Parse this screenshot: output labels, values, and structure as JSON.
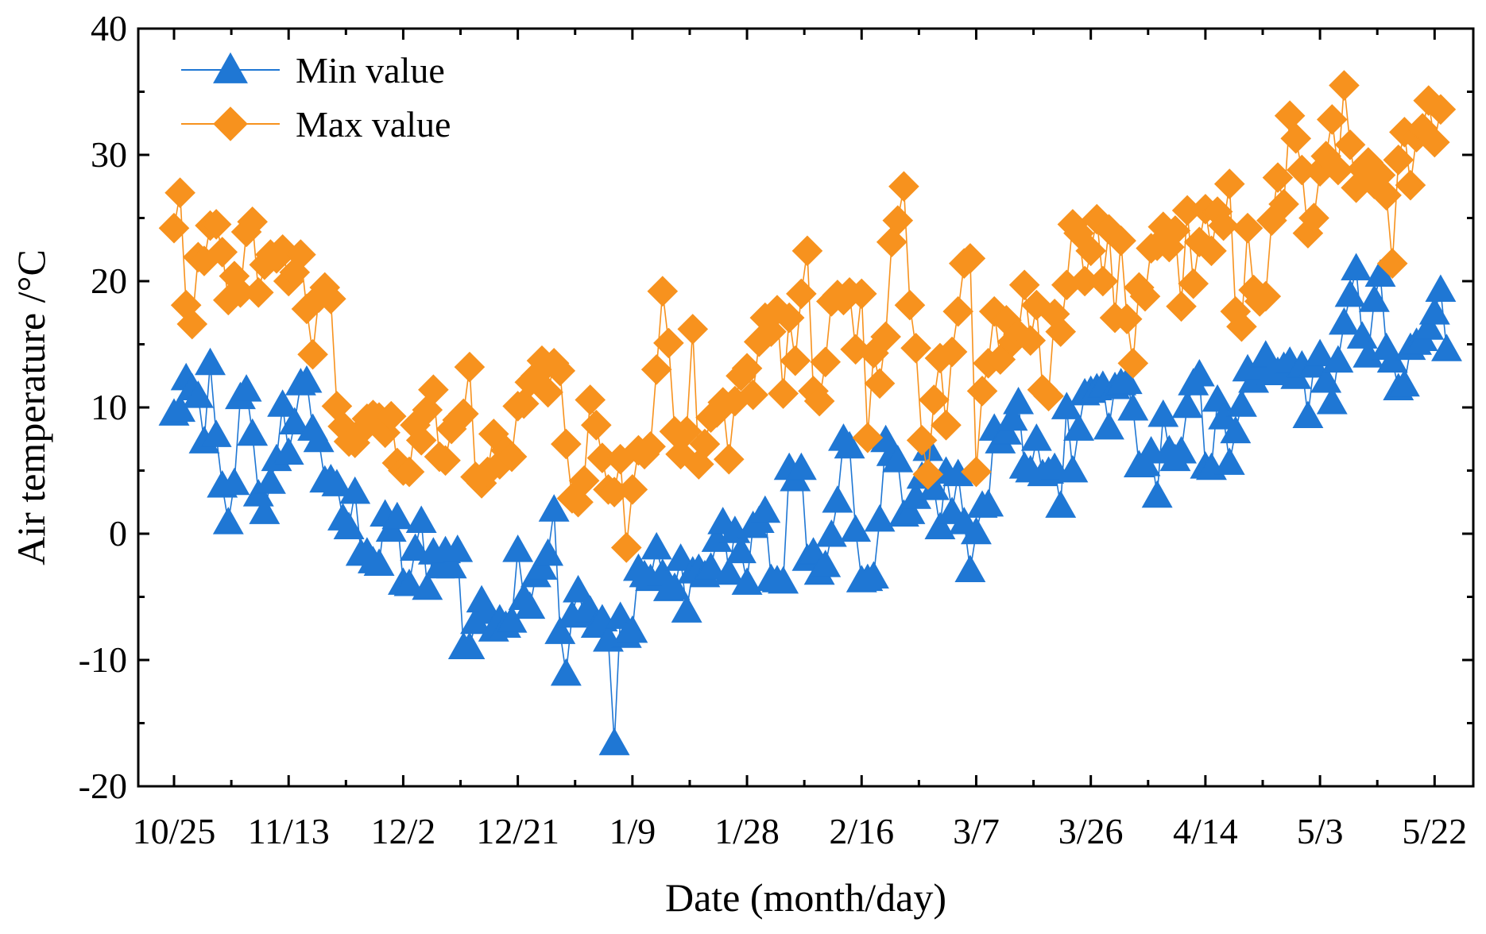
{
  "chart_data": {
    "type": "line",
    "xlabel": "Date (month/day)",
    "ylabel": "Air temperature /°C",
    "ylim": [
      -20,
      40
    ],
    "yticks": [
      -20,
      -10,
      0,
      10,
      20,
      30,
      40
    ],
    "xlim": [
      0,
      217
    ],
    "x_ticks": [
      {
        "pos": 0,
        "label": "10/25"
      },
      {
        "pos": 19,
        "label": "11/13"
      },
      {
        "pos": 38,
        "label": "12/2"
      },
      {
        "pos": 57,
        "label": "12/21"
      },
      {
        "pos": 76,
        "label": "1/9"
      },
      {
        "pos": 95,
        "label": "1/28"
      },
      {
        "pos": 114,
        "label": "2/16"
      },
      {
        "pos": 133,
        "label": "3/7"
      },
      {
        "pos": 152,
        "label": "3/26"
      },
      {
        "pos": 171,
        "label": "4/14"
      },
      {
        "pos": 190,
        "label": "5/3"
      },
      {
        "pos": 209,
        "label": "5/22"
      }
    ],
    "legend": {
      "position": "top-left"
    },
    "grid": false,
    "series": [
      {
        "name": "Min value",
        "color": "#1f77d4",
        "marker": "triangle",
        "values": [
          9.5,
          9.8,
          12.3,
          11.5,
          10.9,
          7.3,
          13.5,
          7.8,
          3.8,
          0.9,
          4,
          10.8,
          11.4,
          7.9,
          3.1,
          1.7,
          4.1,
          5.9,
          10.2,
          6.4,
          8.8,
          11.9,
          12.1,
          8.3,
          7.4,
          4.2,
          4.3,
          3.9,
          1.2,
          0.5,
          3.3,
          -1.6,
          -1.5,
          -2.2,
          -2.4,
          1.5,
          0.3,
          1.3,
          -3.9,
          -4,
          -1.2,
          1,
          -4.3,
          -1.5,
          -2.6,
          -1.4,
          -2.6,
          -1.3,
          -9,
          -9,
          -7,
          -5.3,
          -6.2,
          -7.6,
          -6.8,
          -7.3,
          -6.9,
          -1.3,
          -5.1,
          -5.8,
          -3.3,
          -2.7,
          -1.6,
          1.9,
          -7.8,
          -11.1,
          -6.5,
          -4.5,
          -6.4,
          -6.1,
          -7.3,
          -6.8,
          -8.4,
          -16.6,
          -6.6,
          -8.1,
          -7.7,
          -2.8,
          -3.3,
          -3.6,
          -1.1,
          -3.2,
          -4.4,
          -4.3,
          -2,
          -6.1,
          -3,
          -2.8,
          -3.3,
          -2.7,
          -0.5,
          0.9,
          -3.1,
          0.2,
          -1.4,
          -3.9,
          0.6,
          1,
          1.8,
          -3.6,
          -3.7,
          -3.8,
          5.2,
          4.3,
          5.2,
          -2,
          -1.5,
          -3.1,
          -2.5,
          -0.1,
          2.6,
          7.5,
          6.9,
          0.3,
          -3.7,
          -3.6,
          -3.4,
          1.1,
          7.4,
          6.3,
          5.8,
          1.5,
          1.7,
          2.9,
          4.5,
          6.7,
          3.6,
          0.5,
          4.9,
          1.7,
          4.7,
          0.9,
          -2.9,
          0.1,
          2.2,
          2.3,
          8.3,
          7.3,
          8,
          9.1,
          10.4,
          5.3,
          5,
          7.5,
          4.7,
          4.9,
          5.2,
          2.2,
          10,
          5,
          8.3,
          11.1,
          11.3,
          11.5,
          11.7,
          8.4,
          11.6,
          11.9,
          12,
          9.9,
          5.4,
          5.5,
          6.5,
          3,
          9.4,
          6.6,
          5.9,
          6.5,
          10.1,
          11.9,
          12.6,
          5.3,
          5.2,
          10.6,
          9.2,
          5.6,
          8.1,
          10.2,
          13,
          12.1,
          13.1,
          14.1,
          12.7,
          12.8,
          13.2,
          13.6,
          12.4,
          13.3,
          9.3,
          13.3,
          14.2,
          12.1,
          10.4,
          13.7,
          16.7,
          18.9,
          21,
          15.6,
          14.1,
          18.5,
          20.5,
          14.7,
          13.7,
          11.5,
          11.8,
          14.7,
          15.1,
          15.4,
          16.3,
          17.5,
          19.3,
          14.6
        ]
      },
      {
        "name": "Max value",
        "color": "#f7921e",
        "marker": "diamond",
        "values": [
          24.2,
          27,
          18.1,
          16.6,
          21.9,
          21.6,
          24.4,
          24.5,
          22.3,
          18.5,
          20.4,
          19.1,
          23.9,
          24.7,
          19.1,
          21.3,
          22.1,
          21.8,
          22.5,
          20,
          20.7,
          22.1,
          17.8,
          14.2,
          18.7,
          19.5,
          18.6,
          10.1,
          8.5,
          7.3,
          7.2,
          8.1,
          9.1,
          9.4,
          9.2,
          8,
          9.3,
          5.6,
          5,
          4.9,
          8.6,
          7.4,
          9.8,
          11.4,
          6.1,
          5.8,
          8.3,
          9,
          9.5,
          13.2,
          4.5,
          4,
          4.9,
          7.9,
          5.5,
          6.6,
          6.1,
          10.1,
          10.3,
          12,
          12.5,
          13.7,
          11.2,
          13.5,
          12.9,
          7.1,
          2.8,
          2.5,
          4.2,
          10.6,
          8.6,
          6,
          3.5,
          3.3,
          5.9,
          -1.1,
          3.5,
          6.6,
          6.3,
          6.9,
          13,
          19.2,
          15.1,
          8.1,
          6.3,
          8.1,
          16.2,
          5.5,
          7.1,
          9.2,
          9.6,
          10.4,
          5.9,
          10.5,
          12.5,
          13.1,
          11,
          15.2,
          17.1,
          16,
          17.7,
          11.1,
          17.1,
          13.7,
          19,
          22.4,
          11.3,
          10.5,
          13.6,
          18.4,
          18.9,
          18.5,
          19.1,
          14.6,
          19,
          7.6,
          14.3,
          11.9,
          15.6,
          23.1,
          24.8,
          27.5,
          18.1,
          14.7,
          7.4,
          4.7,
          10.6,
          13.9,
          8.6,
          14.4,
          17.6,
          21.4,
          21.8,
          4.9,
          11.3,
          13.5,
          17.6,
          13.8,
          16.9,
          15.2,
          15.8,
          19.7,
          15.3,
          18.1,
          11.4,
          10.9,
          17.4,
          16,
          19.7,
          24.5,
          23.8,
          20,
          22.4,
          24.9,
          20,
          24.1,
          17.1,
          23.2,
          17,
          13.5,
          19.5,
          18.8,
          22.6,
          22.8,
          24.3,
          22.7,
          24,
          18,
          25.6,
          19.8,
          23.1,
          25.7,
          22.4,
          25.5,
          24.4,
          27.7,
          17.6,
          16.4,
          24.2,
          19.3,
          18.4,
          18.8,
          24.8,
          28.2,
          26.1,
          33.1,
          31.3,
          28.8,
          23.8,
          25,
          28.7,
          29.9,
          32.8,
          28.8,
          35.5,
          30.8,
          27.4,
          28.9,
          29.4,
          27.7,
          28.4,
          26.8,
          21.4,
          29.6,
          31.8,
          27.6,
          31.4,
          32.1,
          34.3,
          31,
          33.6
        ]
      }
    ]
  }
}
